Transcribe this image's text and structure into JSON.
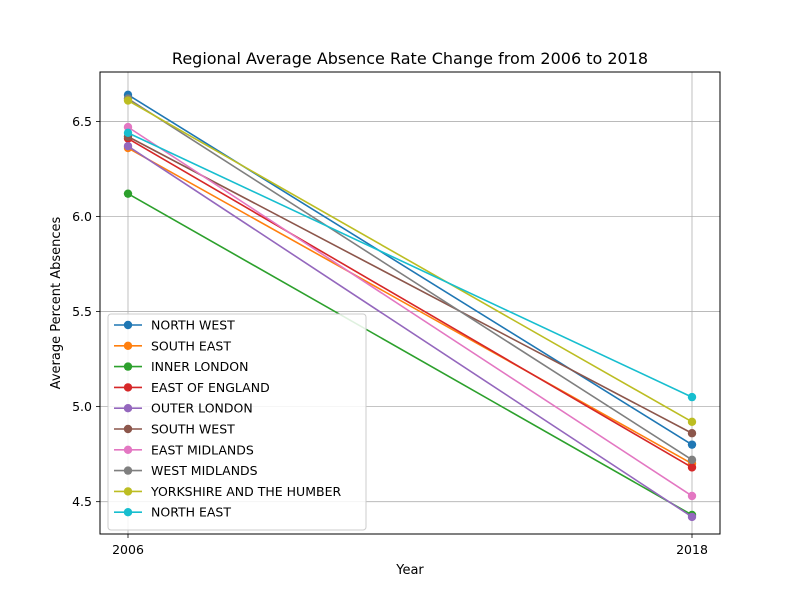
{
  "chart_data": {
    "type": "line",
    "title": "Regional Average Absence Rate Change from 2006 to 2018",
    "xlabel": "Year",
    "ylabel": "Average Percent Absences",
    "x": [
      "2006",
      "2018"
    ],
    "ylim": [
      4.33,
      6.76
    ],
    "yticks": [
      "4.5",
      "5.0",
      "5.5",
      "6.0",
      "6.5"
    ],
    "grid": true,
    "legend_position": "lower-left",
    "series": [
      {
        "name": "NORTH WEST",
        "color": "#1f77b4",
        "values": [
          6.64,
          4.8
        ]
      },
      {
        "name": "SOUTH EAST",
        "color": "#ff7f0e",
        "values": [
          6.36,
          4.7
        ]
      },
      {
        "name": "INNER LONDON",
        "color": "#2ca02c",
        "values": [
          6.12,
          4.43
        ]
      },
      {
        "name": "EAST OF ENGLAND",
        "color": "#d62728",
        "values": [
          6.41,
          4.68
        ]
      },
      {
        "name": "OUTER LONDON",
        "color": "#9467bd",
        "values": [
          6.37,
          4.42
        ]
      },
      {
        "name": "SOUTH WEST",
        "color": "#8c564b",
        "values": [
          6.42,
          4.86
        ]
      },
      {
        "name": "EAST MIDLANDS",
        "color": "#e377c2",
        "values": [
          6.47,
          4.53
        ]
      },
      {
        "name": "WEST MIDLANDS",
        "color": "#7f7f7f",
        "values": [
          6.62,
          4.72
        ]
      },
      {
        "name": "YORKSHIRE AND THE HUMBER",
        "color": "#bcbd22",
        "values": [
          6.61,
          4.92
        ]
      },
      {
        "name": "NORTH EAST",
        "color": "#17becf",
        "values": [
          6.44,
          5.05
        ]
      }
    ]
  }
}
